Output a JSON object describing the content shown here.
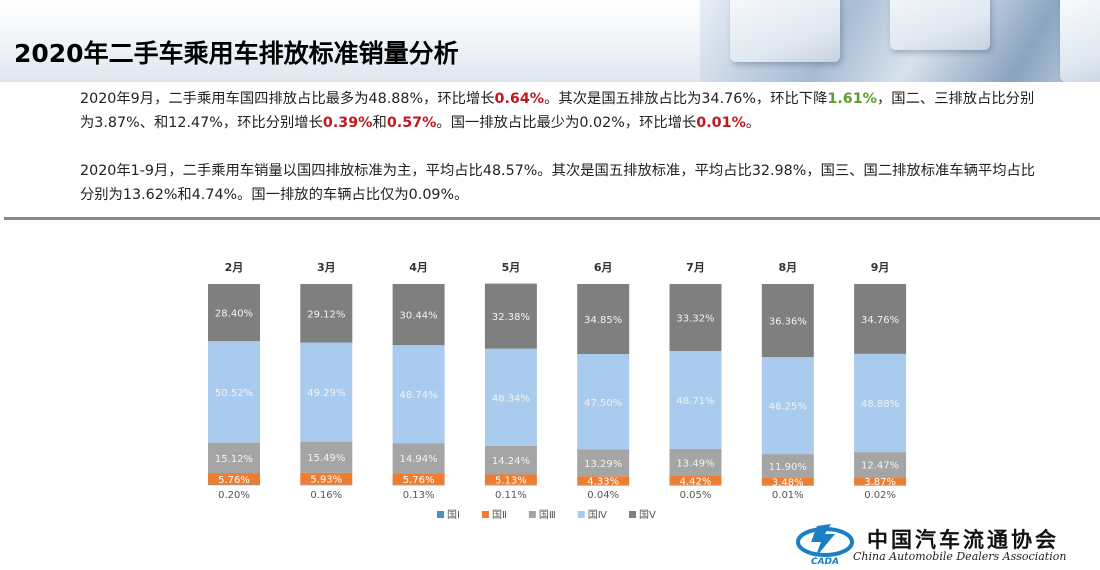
{
  "title": "2020年二手车乘用车排放标准销量分析",
  "para1": {
    "s1": "2020年9月，二手乘用车国四排放占比最多为48.88%，环比增长",
    "r1": "0.64%",
    "s2": "。其次是国五排放占比为34.76%，环比下降",
    "g1": "1.61%",
    "s3": "，国二、三排放占比分别为3.87%、和12.47%，环比分别增长",
    "r2": "0.39%",
    "s4": "和",
    "r3": "0.57%",
    "s5": "。国一排放占比最少为0.02%，环比增长",
    "r4": "0.01%",
    "s6": "。"
  },
  "para2": "2020年1-9月，二手乘用车销量以国四排放标准为主，平均占比48.57%。其次是国五排放标准，平均占比32.98%，国三、国二排放标准车辆平均占比分别为13.62%和4.74%。国一排放的车辆占比仅为0.09%。",
  "logo": {
    "cn": "中国汽车流通协会",
    "en": "China Automobile Dealers Association",
    "mark": "CADA"
  },
  "colors": {
    "g1": "#4e8fc7",
    "g2": "#ed7d31",
    "g3": "#a5a5a5",
    "g4": "#a9cbee",
    "g5": "#7f7f7f"
  },
  "chart_data": {
    "type": "bar",
    "stacked": true,
    "percent_stacked": true,
    "categories": [
      "2月",
      "3月",
      "4月",
      "5月",
      "6月",
      "7月",
      "8月",
      "9月"
    ],
    "series": [
      {
        "name": "国Ⅰ",
        "values": [
          0.2,
          0.16,
          0.13,
          0.11,
          0.04,
          0.05,
          0.01,
          0.02
        ],
        "labels": [
          "0.20%",
          "0.16%",
          "0.13%",
          "0.11%",
          "0.04%",
          "0.05%",
          "0.01%",
          "0.02%"
        ]
      },
      {
        "name": "国Ⅱ",
        "values": [
          5.76,
          5.93,
          5.76,
          5.13,
          4.33,
          4.42,
          3.48,
          3.87
        ],
        "labels": [
          "5.76%",
          "5.93%",
          "5.76%",
          "5.13%",
          "4.33%",
          "4.42%",
          "3.48%",
          "3.87%"
        ]
      },
      {
        "name": "国Ⅲ",
        "values": [
          15.12,
          15.49,
          14.94,
          14.24,
          13.29,
          13.49,
          11.9,
          12.47
        ],
        "labels": [
          "15.12%",
          "15.49%",
          "14.94%",
          "14.24%",
          "13.29%",
          "13.49%",
          "11.90%",
          "12.47%"
        ]
      },
      {
        "name": "国Ⅳ",
        "values": [
          50.52,
          49.29,
          48.74,
          48.34,
          47.5,
          48.71,
          48.25,
          48.88
        ],
        "labels": [
          "50.52%",
          "49.29%",
          "48.74%",
          "48.34%",
          "47.50%",
          "48.71%",
          "48.25%",
          "48.88%"
        ]
      },
      {
        "name": "国Ⅴ",
        "values": [
          28.4,
          29.12,
          30.44,
          32.38,
          34.85,
          33.32,
          36.36,
          34.76
        ],
        "labels": [
          "28.40%",
          "29.12%",
          "30.44%",
          "32.38%",
          "34.85%",
          "33.32%",
          "36.36%",
          "34.76%"
        ]
      }
    ],
    "ylim": [
      0,
      100
    ],
    "legend": "bottom",
    "grid": false
  }
}
